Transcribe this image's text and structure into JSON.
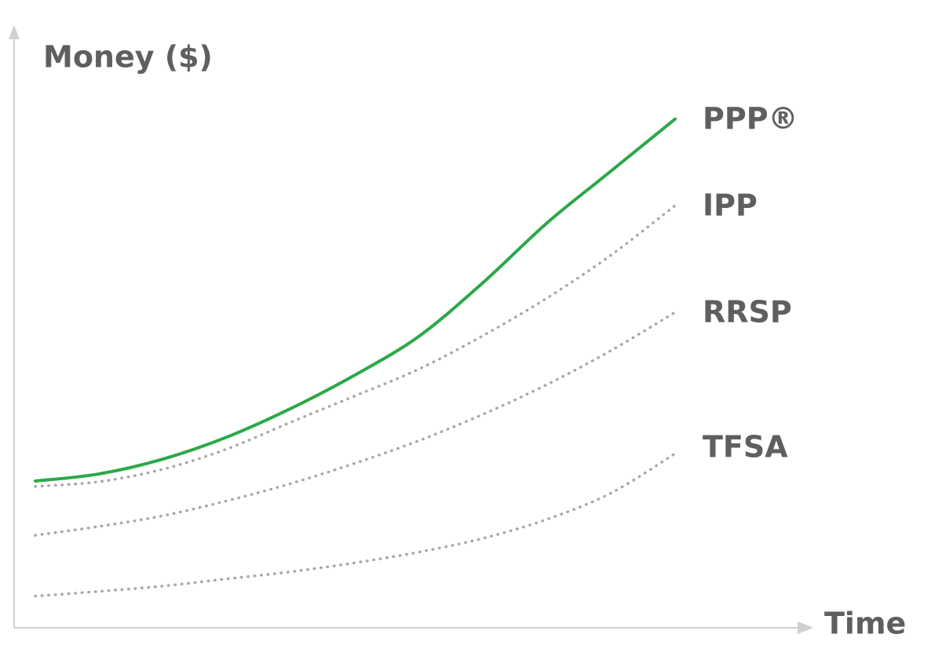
{
  "chart_data": {
    "type": "line",
    "y_label": "Money ($)",
    "x_label": "Time",
    "x": [
      0,
      1,
      2,
      3,
      4,
      5,
      6,
      7,
      8,
      9,
      10
    ],
    "xlim": [
      0,
      10
    ],
    "ylim": [
      0,
      100
    ],
    "series": [
      {
        "name": "PPP®",
        "color": "#2ca84a",
        "style": "solid",
        "values": [
          24.6,
          25.8,
          28.3,
          32.0,
          36.8,
          42.4,
          48.9,
          57.9,
          67.9,
          76.6,
          85.3
        ]
      },
      {
        "name": "IPP",
        "color": "#a9a9a9",
        "style": "dotted",
        "values": [
          23.7,
          24.5,
          26.6,
          30.0,
          34.5,
          38.9,
          43.4,
          49.0,
          55.3,
          62.5,
          70.8
        ]
      },
      {
        "name": "RRSP",
        "color": "#a9a9a9",
        "style": "dotted",
        "values": [
          15.5,
          17.0,
          18.8,
          21.3,
          24.2,
          27.6,
          31.4,
          35.8,
          40.8,
          46.5,
          52.9
        ]
      },
      {
        "name": "TFSA",
        "color": "#a9a9a9",
        "style": "dotted",
        "values": [
          5.3,
          6.1,
          7.0,
          8.2,
          9.4,
          10.9,
          12.7,
          15.0,
          18.2,
          22.6,
          29.2
        ]
      }
    ]
  }
}
